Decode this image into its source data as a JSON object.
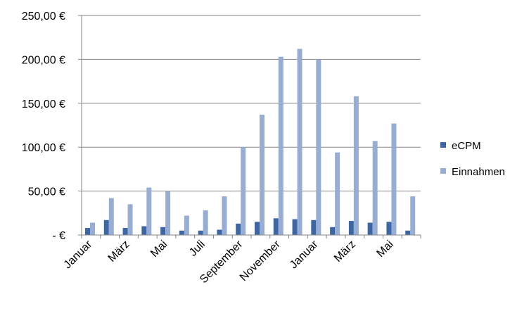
{
  "chart_data": {
    "type": "bar",
    "title": "",
    "xlabel": "",
    "ylabel": "",
    "categories": [
      "Januar",
      "",
      "März",
      "",
      "Mai",
      "",
      "Juli",
      "",
      "September",
      "",
      "November",
      "",
      "Januar",
      "",
      "März",
      "",
      "Mai",
      ""
    ],
    "series": [
      {
        "name": "eCPM",
        "color": "#3c67a4",
        "values": [
          8,
          17,
          8,
          10,
          9,
          5,
          5,
          6,
          13,
          15,
          19,
          18,
          17,
          9,
          16,
          14,
          15,
          5
        ]
      },
      {
        "name": "Einnahmen",
        "color": "#97add4",
        "values": [
          14,
          42,
          35,
          54,
          50,
          22,
          28,
          44,
          100,
          137,
          203,
          212,
          200,
          94,
          158,
          107,
          127,
          44
        ]
      }
    ],
    "ylim": [
      0,
      250
    ],
    "yticks": [
      0,
      50,
      100,
      150,
      200,
      250
    ],
    "ytick_labels": [
      "-   €",
      "50,00 €",
      "100,00 €",
      "150,00 €",
      "200,00 €",
      "250,00 €"
    ],
    "grid": true,
    "legend_position": "right"
  }
}
